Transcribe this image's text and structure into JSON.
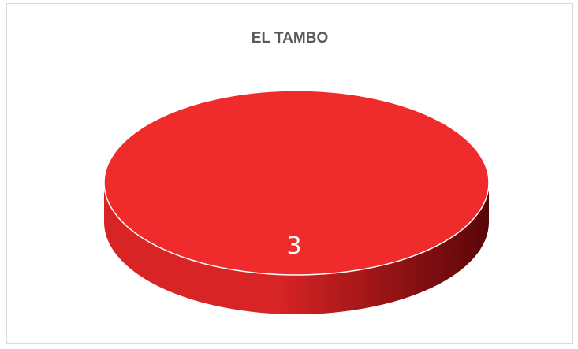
{
  "chart_data": {
    "type": "pie",
    "title": "EL TAMBO",
    "categories": [
      ""
    ],
    "values": [
      3
    ],
    "data_labels": [
      "3"
    ],
    "style": "3d",
    "colors": {
      "top": "#ef2b2b",
      "side_light": "#d82424",
      "side_dark": "#5a0508",
      "edge": "#ffffff"
    }
  }
}
